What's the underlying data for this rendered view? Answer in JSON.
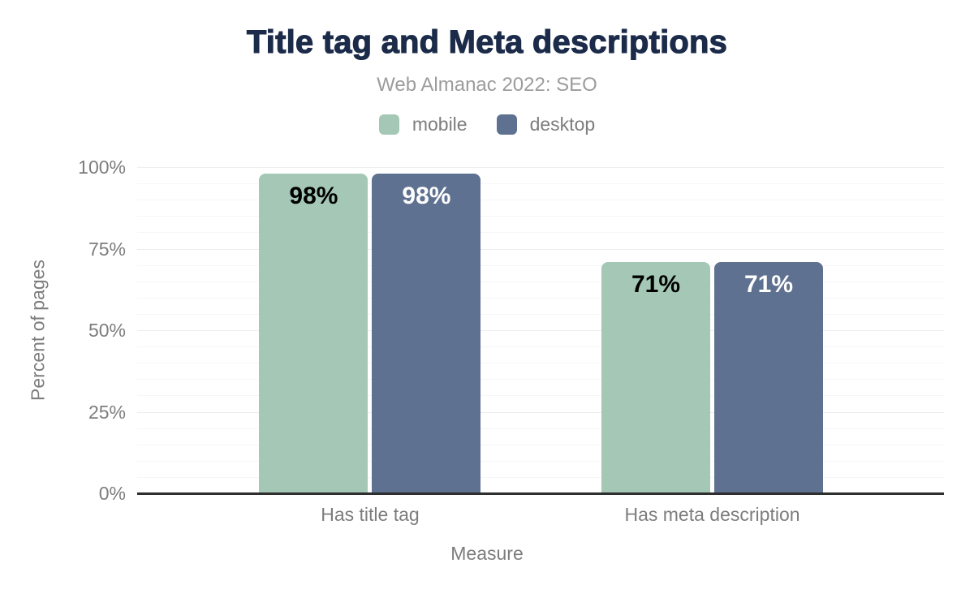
{
  "chart_data": {
    "type": "bar",
    "title": "Title tag and Meta descriptions",
    "subtitle": "Web Almanac 2022: SEO",
    "xlabel": "Measure",
    "ylabel": "Percent of pages",
    "categories": [
      "Has title tag",
      "Has meta description"
    ],
    "series": [
      {
        "name": "mobile",
        "values": [
          98,
          71
        ],
        "color": "#a4c8b5",
        "label_color": "#000000"
      },
      {
        "name": "desktop",
        "values": [
          98,
          71
        ],
        "color": "#5f7190",
        "label_color": "#ffffff"
      }
    ],
    "data_labels": [
      [
        "98%",
        "71%"
      ],
      [
        "98%",
        "71%"
      ]
    ],
    "ylim": [
      0,
      100
    ],
    "yticks": [
      0,
      25,
      50,
      75,
      100
    ],
    "ytick_labels": [
      "0%",
      "25%",
      "50%",
      "75%",
      "100%"
    ],
    "minor_grid_step": 5,
    "grid": true,
    "legend_position": "top",
    "value_suffix": "%"
  },
  "colors": {
    "title": "#1b2b49",
    "subtitle": "#9c9c9c",
    "axis_text": "#7d7d7d",
    "axis_line": "#2f2f2f",
    "grid_major": "#ededed",
    "grid_minor": "#f6f6f6",
    "background": "#ffffff"
  }
}
